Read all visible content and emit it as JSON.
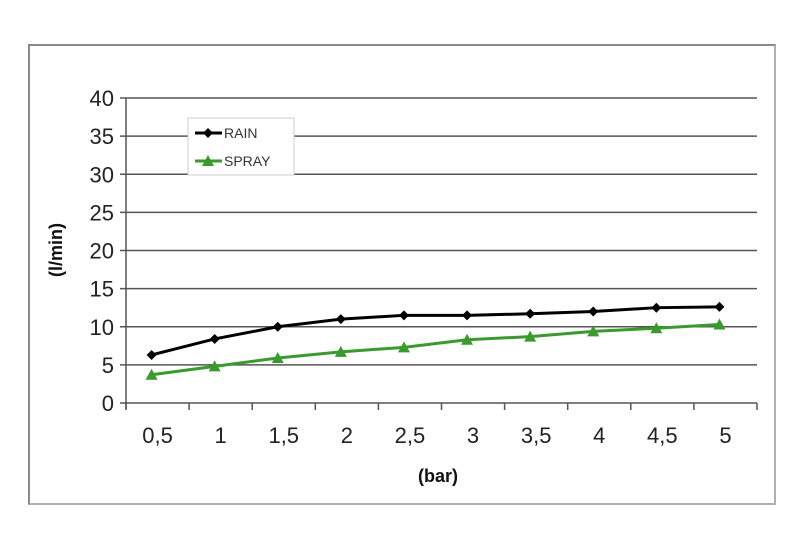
{
  "chart_data": {
    "type": "line",
    "title": "",
    "xlabel": "(bar)",
    "ylabel": "(l/min)",
    "categories": [
      "0,5",
      "1",
      "1,5",
      "2",
      "2,5",
      "3",
      "3,5",
      "4",
      "4,5",
      "5"
    ],
    "ylim": [
      0,
      40
    ],
    "yticks": [
      0,
      5,
      10,
      15,
      20,
      25,
      30,
      35,
      40
    ],
    "grid": true,
    "legend_position": "top-left",
    "series": [
      {
        "name": "RAIN",
        "color": "#000000",
        "marker": "diamond",
        "values": [
          6.3,
          8.4,
          10.0,
          11.0,
          11.5,
          11.5,
          11.7,
          12.0,
          12.5,
          12.6
        ]
      },
      {
        "name": "SPRAY",
        "color": "#3a9a2e",
        "marker": "triangle",
        "values": [
          3.7,
          4.8,
          5.9,
          6.7,
          7.3,
          8.3,
          8.7,
          9.4,
          9.8,
          10.3
        ]
      }
    ]
  }
}
